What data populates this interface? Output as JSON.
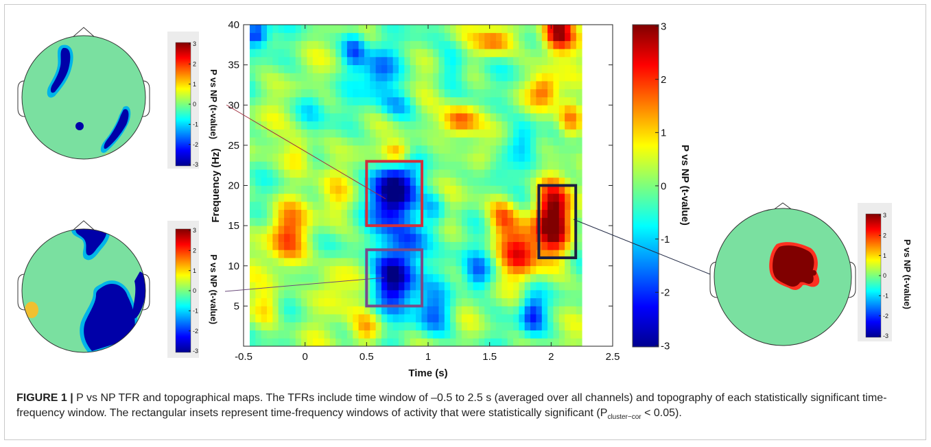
{
  "chart_data": [
    {
      "type": "heatmap",
      "xlabel": "Time (s)",
      "ylabel": "Frequency (Hz)",
      "xlim": [
        -0.5,
        2.5
      ],
      "ylim": [
        0,
        40
      ],
      "x_ticks": [
        "-0.5",
        "0",
        "0.5",
        "1",
        "1.5",
        "2",
        "2.5"
      ],
      "y_ticks": [
        "5",
        "10",
        "15",
        "20",
        "25",
        "30",
        "35",
        "40"
      ],
      "data_time_range": [
        -0.45,
        2.25
      ],
      "colorbar": {
        "label": "P vs NP (t-value)",
        "range": [
          -3,
          3
        ],
        "ticks": [
          "3",
          "2",
          "1",
          "0",
          "-1",
          "-2",
          "-3"
        ]
      },
      "significant_windows": [
        {
          "time": [
            0.5,
            0.95
          ],
          "freq": [
            15,
            23
          ],
          "box_color": "#d0303c"
        },
        {
          "time": [
            0.5,
            0.95
          ],
          "freq": [
            5,
            12
          ],
          "box_color": "#7a4a88"
        },
        {
          "time": [
            1.9,
            2.2
          ],
          "freq": [
            11,
            20
          ],
          "box_color": "#1c1f40"
        }
      ]
    },
    {
      "type": "heatmap",
      "title": "topography",
      "colorbar": {
        "label": "P vs NP (t-value)",
        "ticks": [
          "3",
          "2",
          "1",
          "0",
          "-1",
          "-2",
          "-3"
        ]
      }
    },
    {
      "type": "heatmap",
      "title": "topography",
      "colorbar": {
        "label": "P vs NP (t-value)",
        "ticks": [
          "3",
          "2",
          "1",
          "0",
          "-1",
          "-2",
          "-3"
        ]
      }
    },
    {
      "type": "heatmap",
      "title": "topography",
      "colorbar": {
        "label": "P vs NP (t-value)",
        "ticks": [
          "3",
          "2",
          "1",
          "0",
          "-1",
          "-2",
          "-3"
        ]
      }
    }
  ],
  "caption": {
    "label": "FIGURE 1 |",
    "text_before_sub": " P vs NP TFR and topographical maps. The TFRs include time window of –0.5 to 2.5 s (averaged over all channels) and topography of each statistically significant time-frequency window. The rectangular insets represent time-frequency windows of activity that were statistically significant (P",
    "subscript": "cluster−cor",
    "text_after_sub": " < 0.05)."
  }
}
